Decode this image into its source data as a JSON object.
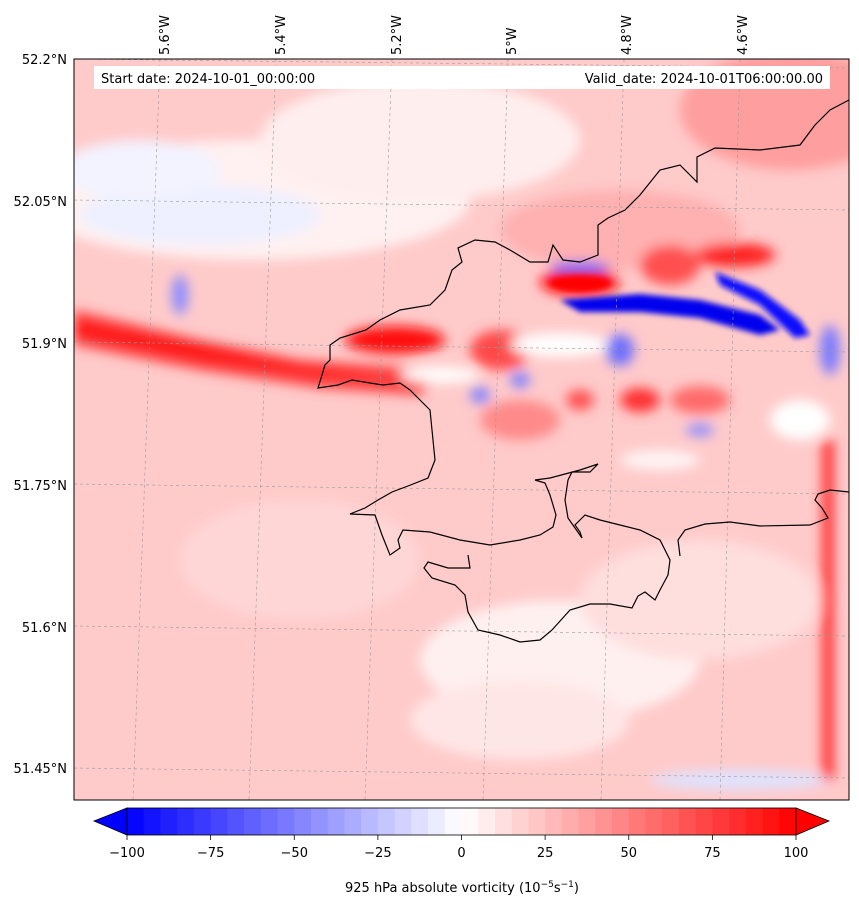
{
  "info": {
    "start_date": "Start date: 2024-10-01_00:00:00",
    "valid_date": "Valid_date: 2024-10-01T06:00:00.00"
  },
  "map": {
    "lon_labels": [
      "5.6°W",
      "5.4°W",
      "5.2°W",
      "5°W",
      "4.8°W",
      "4.6°W"
    ],
    "lat_labels": [
      "52.2°N",
      "52.05°N",
      "51.9°N",
      "51.75°N",
      "51.6°N",
      "51.45°N"
    ],
    "lon_values": [
      -5.6,
      -5.4,
      -5.2,
      -5.0,
      -4.8,
      -4.6
    ],
    "lat_values": [
      52.2,
      52.05,
      51.9,
      51.75,
      51.6,
      51.45
    ],
    "gridlines": true,
    "coastline_color": "#000000"
  },
  "colorbar": {
    "ticks": [
      "−100",
      "−75",
      "−50",
      "−25",
      "0",
      "25",
      "50",
      "75",
      "100"
    ],
    "tick_values": [
      -100,
      -75,
      -50,
      -25,
      0,
      25,
      50,
      75,
      100
    ],
    "range": [
      -100,
      100
    ],
    "extend": "both",
    "colormap": "bwr",
    "low_color": "#0000ff",
    "mid_color": "#ffffff",
    "high_color": "#ff0000",
    "label": "925 hPa absolute vorticity (10",
    "label_exp1": "−5",
    "label_mid": "s",
    "label_exp2": "−1",
    "label_end": ")"
  }
}
